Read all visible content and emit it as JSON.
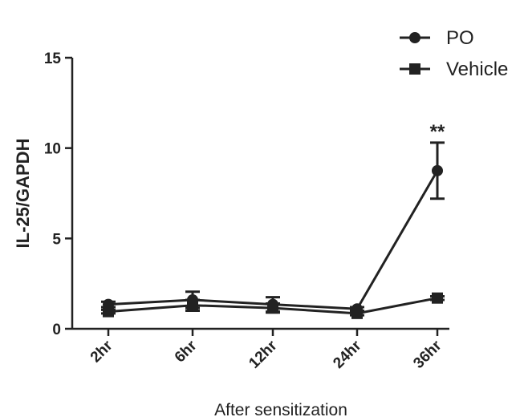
{
  "chart_data": {
    "type": "line",
    "categories": [
      "2hr",
      "6hr",
      "12hr",
      "24hr",
      "36hr"
    ],
    "ylabel": "IL-25/GAPDH",
    "xlabel": "After sensitization",
    "ylim": [
      0,
      15
    ],
    "yticks": [
      0,
      5,
      10,
      15
    ],
    "grid": false,
    "legend_position": "top-right",
    "series": [
      {
        "name": "PO",
        "marker": "circle",
        "values": [
          1.35,
          1.6,
          1.35,
          1.1,
          8.75
        ],
        "error": [
          0.15,
          0.45,
          0.4,
          0.1,
          1.55
        ]
      },
      {
        "name": "Vehicle",
        "marker": "square",
        "values": [
          0.95,
          1.3,
          1.15,
          0.85,
          1.7
        ],
        "error": [
          0.1,
          0.3,
          0.25,
          0.1,
          0.1
        ]
      }
    ],
    "annotations": [
      {
        "category": "36hr",
        "text": "**"
      }
    ],
    "colors": {
      "line": "#222222"
    }
  }
}
